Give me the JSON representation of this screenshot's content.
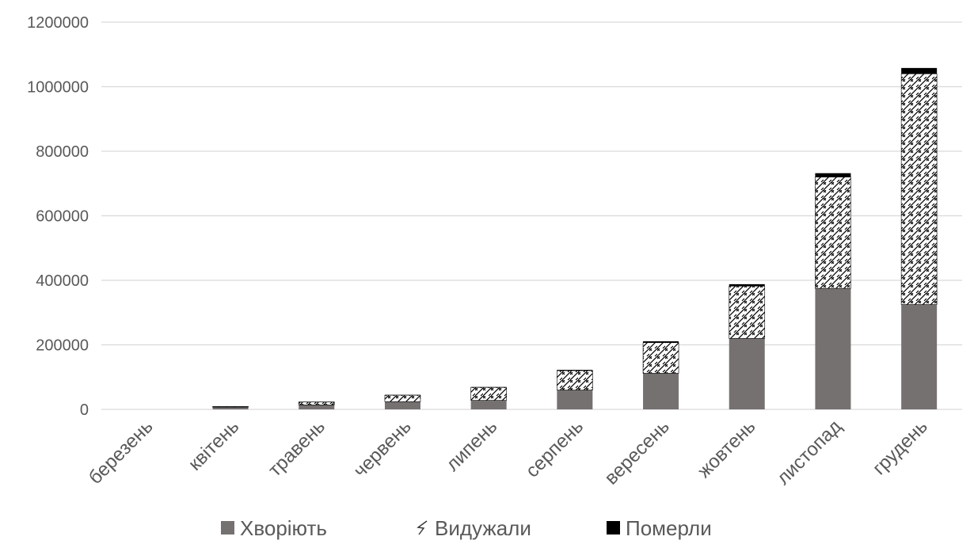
{
  "chart_data": {
    "type": "bar",
    "stacked": true,
    "categories": [
      "березень",
      "квітень",
      "травень",
      "червень",
      "липень",
      "серпень",
      "вересень",
      "жовтень",
      "листопад",
      "грудень"
    ],
    "series": [
      {
        "name": "Хворіють",
        "values": [
          0,
          7000,
          14000,
          24000,
          28000,
          60000,
          112000,
          220000,
          375000,
          325000
        ],
        "color": "#767171",
        "pattern": "solid"
      },
      {
        "name": "Видужали",
        "values": [
          0,
          2000,
          9000,
          20000,
          40000,
          60000,
          95000,
          162000,
          345000,
          715000
        ],
        "color": "#000000",
        "pattern": "zigzag-hatch"
      },
      {
        "name": "Померли",
        "values": [
          0,
          200,
          500,
          1000,
          1500,
          2500,
          4000,
          6000,
          12000,
          18000
        ],
        "color": "#000000",
        "pattern": "solid"
      }
    ],
    "yticks": [
      "0",
      "200000",
      "400000",
      "600000",
      "800000",
      "1000000",
      "1200000"
    ],
    "ylim": [
      0,
      1200000
    ],
    "grid": true,
    "legend_position": "bottom",
    "gridline_color": "#d9d9d9",
    "tick_label_color": "#595959"
  }
}
